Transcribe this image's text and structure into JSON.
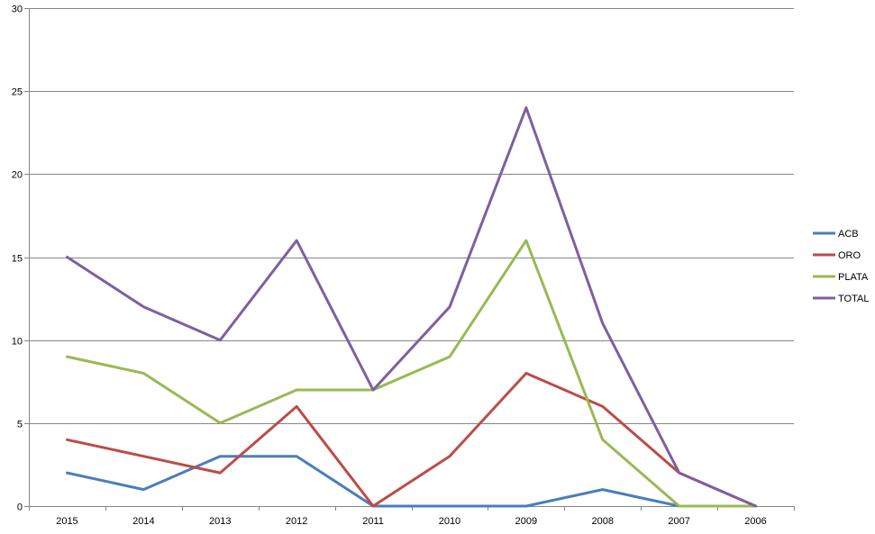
{
  "chart_data": {
    "type": "line",
    "title": "",
    "xlabel": "",
    "ylabel": "",
    "categories": [
      "2015",
      "2014",
      "2013",
      "2012",
      "2011",
      "2010",
      "2009",
      "2008",
      "2007",
      "2006"
    ],
    "ylim": [
      0,
      30
    ],
    "yticks": [
      0,
      5,
      10,
      15,
      20,
      25,
      30
    ],
    "grid": true,
    "legend_position": "right",
    "series": [
      {
        "name": "ACB",
        "color": "#4a7ebb",
        "values": [
          2,
          1,
          3,
          3,
          0,
          0,
          0,
          1,
          0,
          0
        ]
      },
      {
        "name": "ORO",
        "color": "#be4b48",
        "values": [
          4,
          3,
          2,
          6,
          0,
          3,
          8,
          6,
          2,
          0
        ]
      },
      {
        "name": "PLATA",
        "color": "#98b954",
        "values": [
          9,
          8,
          5,
          7,
          7,
          9,
          16,
          4,
          0,
          0
        ]
      },
      {
        "name": "TOTAL",
        "color": "#7d60a0",
        "values": [
          15,
          12,
          10,
          16,
          7,
          12,
          24,
          11,
          2,
          0
        ]
      }
    ]
  }
}
